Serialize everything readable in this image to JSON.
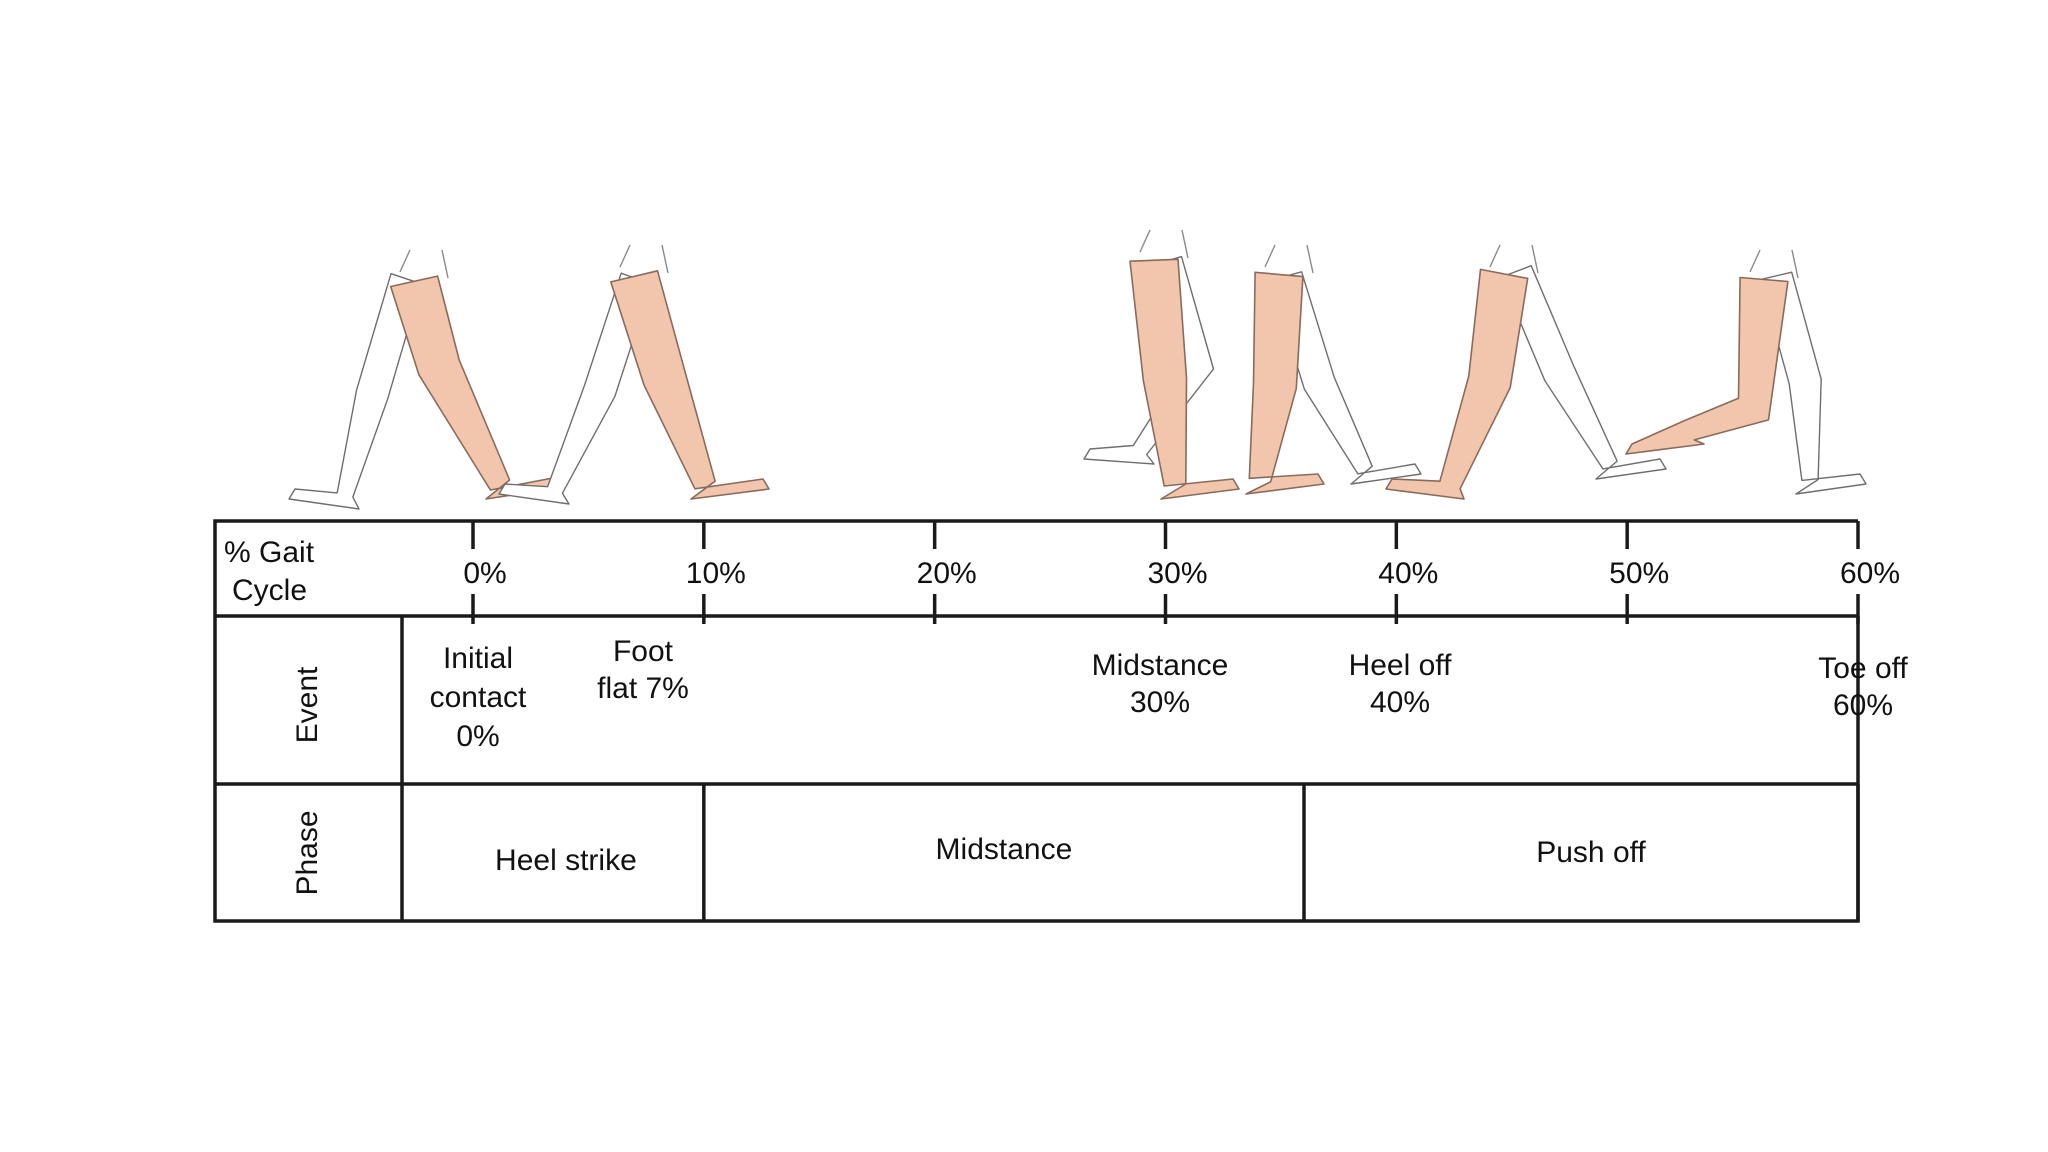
{
  "header_label": [
    "% Gait",
    "Cycle"
  ],
  "row_labels": {
    "event": "Event",
    "phase": "Phase"
  },
  "ticks": [
    {
      "label": "0%",
      "value": 0
    },
    {
      "label": "10%",
      "value": 10
    },
    {
      "label": "20%",
      "value": 20
    },
    {
      "label": "30%",
      "value": 30
    },
    {
      "label": "40%",
      "value": 40
    },
    {
      "label": "50%",
      "value": 50
    },
    {
      "label": "60%",
      "value": 60
    }
  ],
  "events": [
    {
      "id": "initial-contact",
      "lines": [
        "Initial",
        "contact",
        "0%"
      ],
      "percent": 0
    },
    {
      "id": "foot-flat",
      "lines": [
        "Foot",
        "flat 7%"
      ],
      "percent": 7
    },
    {
      "id": "midstance",
      "lines": [
        "Midstance",
        "30%"
      ],
      "percent": 30
    },
    {
      "id": "heel-off",
      "lines": [
        "Heel off",
        "40%"
      ],
      "percent": 40
    },
    {
      "id": "toe-off",
      "lines": [
        "Toe off",
        "60%"
      ],
      "percent": 60
    }
  ],
  "phases": [
    {
      "id": "heel-strike",
      "label": "Heel strike",
      "start": 0,
      "end": 10
    },
    {
      "id": "midstance",
      "label": "Midstance",
      "start": 10,
      "end": 36
    },
    {
      "id": "push-off",
      "label": "Push off",
      "start": 36,
      "end": 60
    }
  ],
  "figures": [
    {
      "name": "leg-figure-initial-contact",
      "percent": 0
    },
    {
      "name": "leg-figure-foot-flat",
      "percent": 7
    },
    {
      "name": "leg-figure-midstance-early",
      "percent": 30
    },
    {
      "name": "leg-figure-midstance-late",
      "percent": 35
    },
    {
      "name": "leg-figure-heel-off",
      "percent": 45
    },
    {
      "name": "leg-figure-toe-off",
      "percent": 57
    }
  ],
  "colors": {
    "lines": "#1a1a1a",
    "front_leg": "#f2c6ad",
    "back_leg": "#ffffff"
  }
}
